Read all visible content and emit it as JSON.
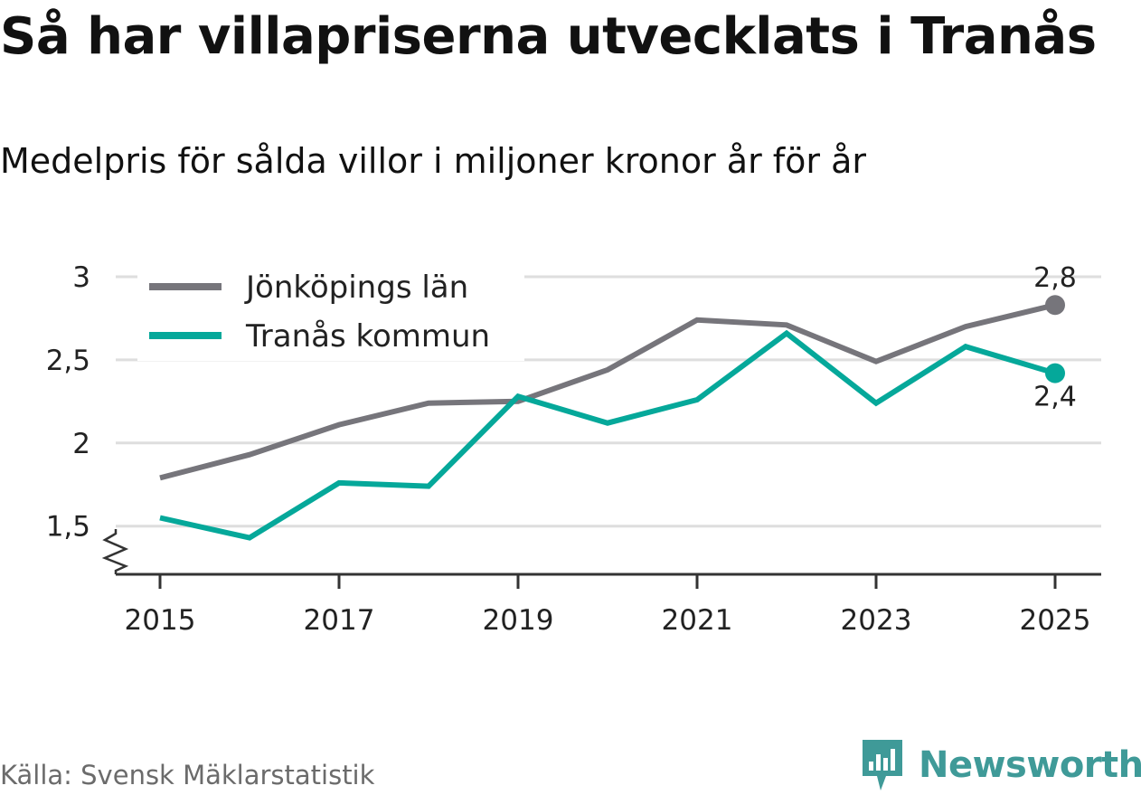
{
  "header": {
    "title": "Så har villapriserna utvecklats i Tranås",
    "subtitle": "Medelpris för sålda villor i miljoner kronor år för år"
  },
  "footer": {
    "source": "Källa: Svensk Mäklarstatistik",
    "brand": "Newsworthy",
    "brand_color": "#3f9a98"
  },
  "chart_data": {
    "type": "line",
    "title": "Så har villapriserna utvecklats i Tranås",
    "subtitle": "Medelpris för sålda villor i miljoner kronor år för år",
    "xlabel": "",
    "ylabel": "",
    "x": [
      2015,
      2016,
      2017,
      2018,
      2019,
      2020,
      2021,
      2022,
      2023,
      2024,
      2025
    ],
    "x_ticks": [
      2015,
      2017,
      2019,
      2021,
      2023,
      2025
    ],
    "x_tick_labels": [
      "2015",
      "2017",
      "2019",
      "2021",
      "2023",
      "2025"
    ],
    "y_ticks": [
      1.5,
      2,
      2.5,
      3
    ],
    "y_tick_labels": [
      "1,5",
      "2",
      "2,5",
      "3"
    ],
    "ylim": [
      1.21,
      3.0
    ],
    "grid": true,
    "axis_break": true,
    "legend_position": "top-left",
    "series": [
      {
        "name": "Jönköpings län",
        "color": "#76757b",
        "values": [
          1.79,
          1.93,
          2.11,
          2.24,
          2.25,
          2.44,
          2.74,
          2.71,
          2.49,
          2.7,
          2.83
        ],
        "end_label": "2,8",
        "end_label_position": "above"
      },
      {
        "name": "Tranås kommun",
        "color": "#05a89a",
        "values": [
          1.55,
          1.43,
          1.76,
          1.74,
          2.28,
          2.12,
          2.26,
          2.66,
          2.24,
          2.58,
          2.42
        ],
        "end_label": "2,4",
        "end_label_position": "below"
      }
    ]
  }
}
